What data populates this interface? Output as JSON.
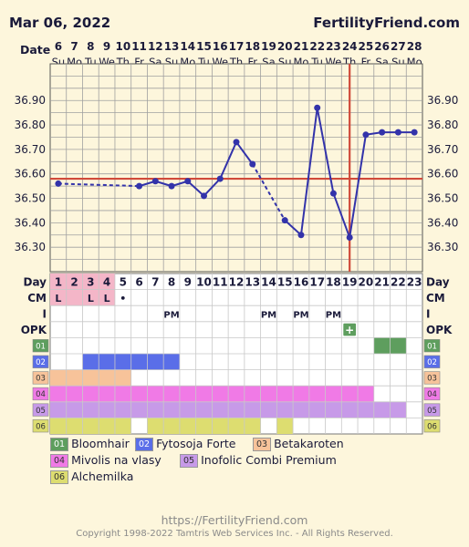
{
  "header": {
    "date": "Mar 06, 2022",
    "site": "FertilityFriend.com"
  },
  "labels": {
    "date_row": "Date",
    "day_row": "Day",
    "cm_row": "CM",
    "i_row": "I",
    "opk_row": "OPK"
  },
  "colors": {
    "line": "#3333aa",
    "coverline": "#d04a3a",
    "grid": "#a0a0a0",
    "plot_bg": "#fdf6dc",
    "period": "#f4b6c8",
    "supp": [
      "#5e9e5e",
      "#5a6ee8",
      "#f7c39a",
      "#f07ae6",
      "#c79ae8",
      "#dddd70"
    ]
  },
  "chart_data": {
    "type": "line",
    "title": "",
    "xlabel": "Day",
    "ylabel": "",
    "ylim": [
      36.2,
      37.05
    ],
    "y_ticks": [
      "36.30",
      "36.40",
      "36.50",
      "36.60",
      "36.70",
      "36.80",
      "36.90"
    ],
    "cycle_days": [
      1,
      2,
      3,
      4,
      5,
      6,
      7,
      8,
      9,
      10,
      11,
      12,
      13,
      14,
      15,
      16,
      17,
      18,
      19,
      20,
      21,
      22,
      23
    ],
    "dates": [
      "6",
      "7",
      "8",
      "9",
      "10",
      "11",
      "12",
      "13",
      "14",
      "15",
      "16",
      "17",
      "18",
      "19",
      "20",
      "21",
      "22",
      "23",
      "24",
      "25",
      "26",
      "27",
      "28"
    ],
    "weekdays": [
      "Su",
      "Mo",
      "Tu",
      "We",
      "Th",
      "Fr",
      "Sa",
      "Su",
      "Mo",
      "Tu",
      "We",
      "Th",
      "Fr",
      "Sa",
      "Su",
      "Mo",
      "Tu",
      "We",
      "Th",
      "Fr",
      "Sa",
      "Su",
      "Mo"
    ],
    "temperatures": [
      36.56,
      null,
      null,
      null,
      null,
      36.55,
      36.57,
      36.55,
      36.57,
      36.51,
      36.58,
      36.73,
      36.64,
      null,
      36.41,
      36.35,
      36.87,
      36.52,
      36.34,
      36.76,
      36.77,
      36.77,
      36.77
    ],
    "coverline": 36.58,
    "ovulation_day": 19,
    "cm": [
      "L",
      "",
      "L",
      "L",
      "•",
      "",
      "",
      "",
      "",
      "",
      "",
      "",
      "",
      "",
      "",
      "",
      "",
      "",
      "",
      "",
      "",
      "",
      ""
    ],
    "intercourse": [
      "",
      "",
      "",
      "",
      "",
      "",
      "",
      "PM",
      "",
      "",
      "",
      "",
      "",
      "PM",
      "",
      "PM",
      "",
      "PM",
      "",
      "",
      "",
      "",
      ""
    ],
    "opk": [
      "",
      "",
      "",
      "",
      "",
      "",
      "",
      "",
      "",
      "",
      "",
      "",
      "",
      "",
      "",
      "",
      "",
      "",
      "+",
      "",
      "",
      "",
      ""
    ],
    "period_days": [
      1,
      2,
      3,
      4
    ],
    "supplements": [
      {
        "code": "01",
        "name": "Bloomhair",
        "days": [
          21,
          22
        ]
      },
      {
        "code": "02",
        "name": "Fytosoja Forte",
        "days": [
          3,
          4,
          5,
          6,
          7,
          8
        ]
      },
      {
        "code": "03",
        "name": "Betakaroten",
        "days": [
          1,
          2,
          3,
          4,
          5
        ]
      },
      {
        "code": "04",
        "name": "Mivolis na vlasy",
        "days": [
          1,
          2,
          3,
          4,
          5,
          6,
          7,
          8,
          9,
          10,
          11,
          12,
          13,
          14,
          15,
          16,
          17,
          18,
          19,
          20
        ]
      },
      {
        "code": "05",
        "name": "Inofolic Combi Premium",
        "days": [
          1,
          2,
          3,
          4,
          5,
          6,
          7,
          8,
          9,
          10,
          11,
          12,
          13,
          14,
          15,
          16,
          17,
          18,
          19,
          20,
          21,
          22
        ]
      },
      {
        "code": "06",
        "name": "Alchemilka",
        "days": [
          1,
          2,
          3,
          4,
          5,
          7,
          8,
          9,
          10,
          11,
          12,
          13,
          15
        ]
      }
    ]
  },
  "footer": {
    "url": "https://FertilityFriend.com",
    "copyright": "Copyright 1998-2022 Tamtris Web Services Inc. - All Rights Reserved."
  }
}
